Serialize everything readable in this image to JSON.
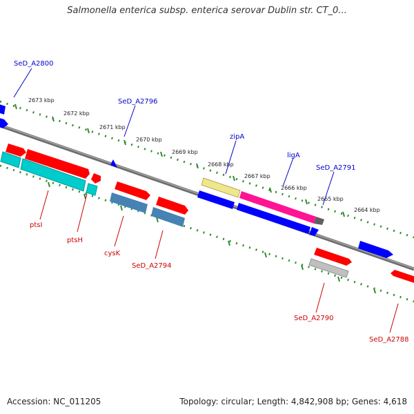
{
  "title": "Salmonella enterica subsp. enterica serovar Dublin str. CT_0...",
  "footer": {
    "accession": "Accession: NC_011205",
    "summary": "Topology: circular; Length: 4,842,908 bp; Genes: 4,618"
  },
  "colors": {
    "backbone": "#808080",
    "ticks": "#2e8b2e",
    "label_blue": "#0000cc",
    "label_red": "#cc0000"
  },
  "ticks": [
    "2673 kbp",
    "2672 kbp",
    "2671 kbp",
    "2670 kbp",
    "2669 kbp",
    "2668 kbp",
    "2667 kbp",
    "2666 kbp",
    "2665 kbp",
    "2664 kbp"
  ],
  "gene_labels_top": [
    "SeD_A2800",
    "SeD_A2796",
    "zipA",
    "ligA",
    "SeD_A2791"
  ],
  "gene_labels_bottom": [
    "ptsI",
    "ptsH",
    "cysK",
    "SeD_A2794",
    "SeD_A2790",
    "SeD_A2788"
  ]
}
